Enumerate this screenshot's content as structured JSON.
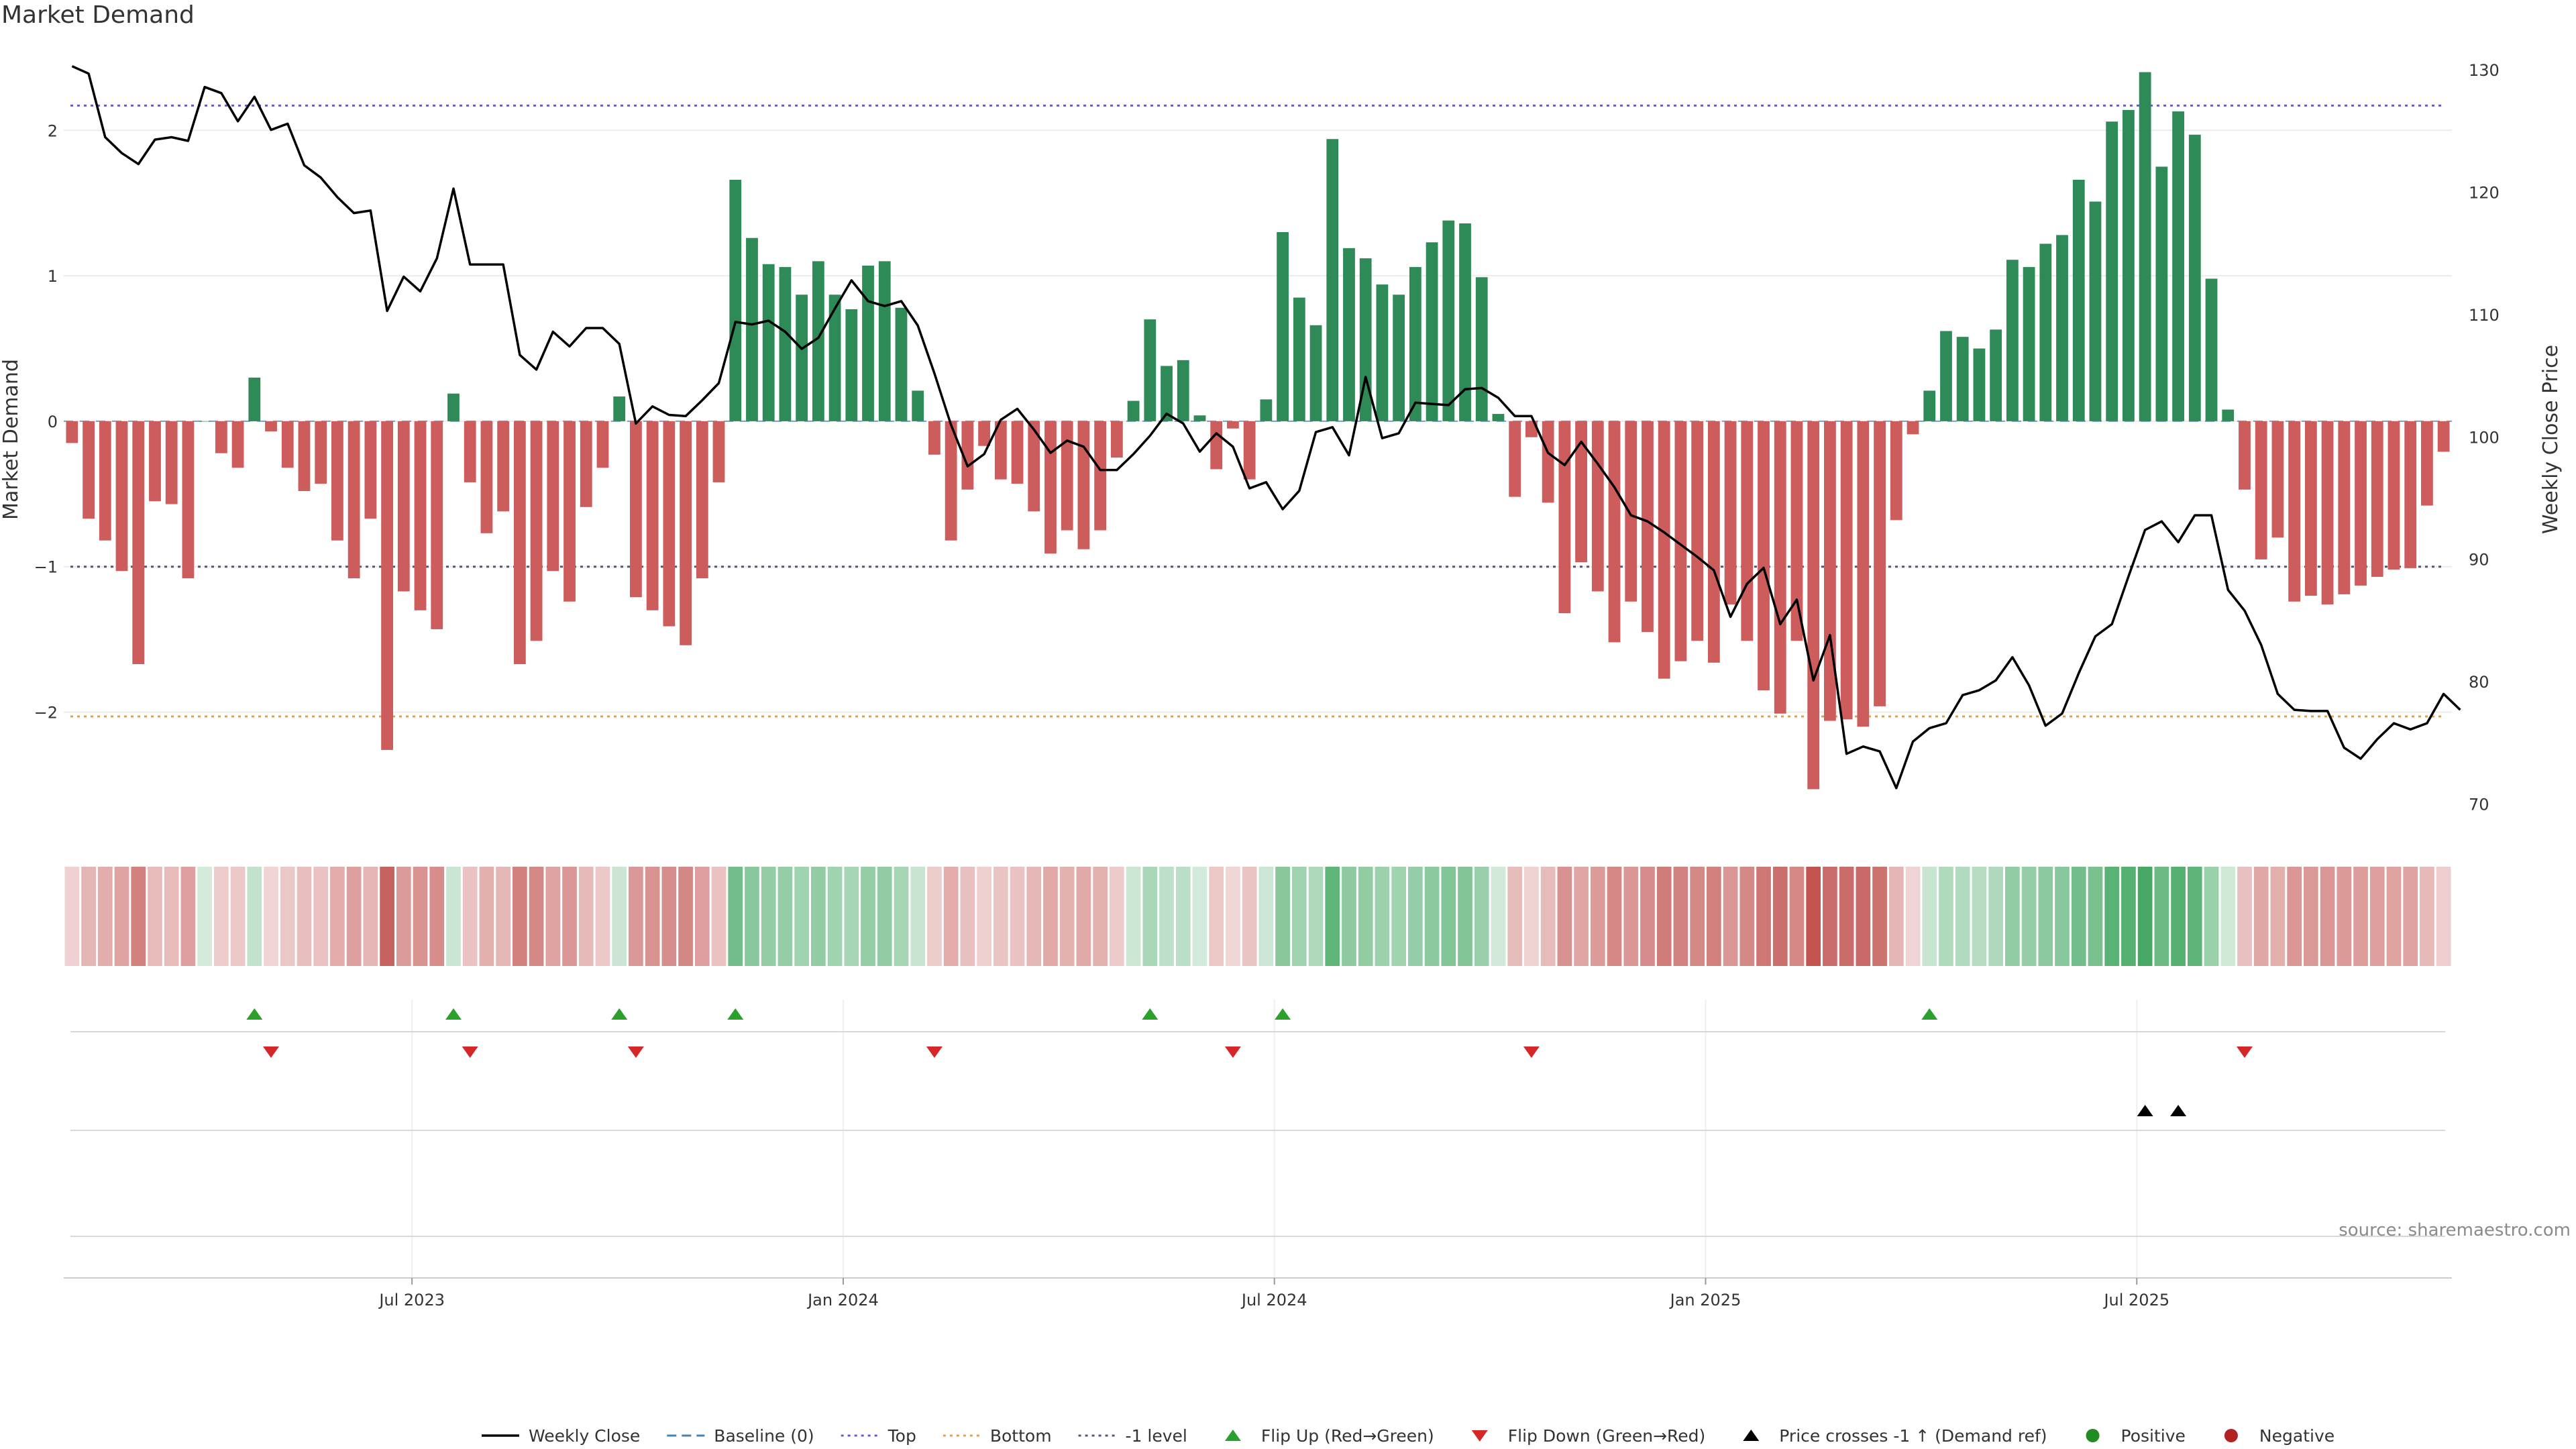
{
  "title": "Market Demand",
  "source_text": "source: sharemaestro.com",
  "colors": {
    "positive": "#2e8b57",
    "negative": "#cd5c5c",
    "price_line": "#000000",
    "top_line": "#6a5acd",
    "bottom_line": "#e0a050",
    "minus1_line": "#555577",
    "baseline": "#4682b4",
    "flip_up": "#2ca02c",
    "flip_down": "#d62728",
    "cross": "#000000"
  },
  "chart_data": {
    "type": "bar+line",
    "title": "Market Demand",
    "y_left_label": "Market Demand",
    "y_right_label": "Weekly Close Price",
    "y_left_ticks": [
      2,
      1,
      0,
      -1,
      -2
    ],
    "y_left_tick_labels": [
      "2",
      "1",
      "0",
      "−1",
      "−2"
    ],
    "y_left_range": [
      -2.8,
      2.55
    ],
    "y_right_ticks": [
      130,
      120,
      110,
      100,
      90,
      80,
      70
    ],
    "y_right_range": [
      68,
      131.6
    ],
    "x_tick_labels": [
      "Jul 2023",
      "Jan 2024",
      "Jul 2024",
      "Jan 2025",
      "Jul 2025"
    ],
    "x_tick_week_index": [
      21,
      47,
      73,
      99,
      125
    ],
    "reference_levels": {
      "top": 2.17,
      "bottom": -2.03,
      "minus_one": -1.0,
      "baseline": 0
    },
    "demand": [
      -0.15,
      -0.67,
      -0.82,
      -1.03,
      -1.67,
      -0.55,
      -0.57,
      -1.08,
      0,
      -0.22,
      -0.32,
      0.3,
      -0.07,
      -0.32,
      -0.48,
      -0.43,
      -0.82,
      -1.08,
      -0.67,
      -2.26,
      -1.17,
      -1.3,
      -1.43,
      0.19,
      -0.42,
      -0.77,
      -0.62,
      -1.67,
      -1.51,
      -1.03,
      -1.24,
      -0.59,
      -0.32,
      0.17,
      -1.21,
      -1.3,
      -1.41,
      -1.54,
      -1.08,
      -0.42,
      1.66,
      1.26,
      1.08,
      1.06,
      0.87,
      1.1,
      0.87,
      0.77,
      1.07,
      1.1,
      0.78,
      0.21,
      -0.23,
      -0.82,
      -0.47,
      -0.17,
      -0.4,
      -0.43,
      -0.62,
      -0.91,
      -0.75,
      -0.88,
      -0.75,
      -0.25,
      0.14,
      0.7,
      0.38,
      0.42,
      0.04,
      -0.33,
      -0.05,
      -0.4,
      0.15,
      1.3,
      0.85,
      0.66,
      1.94,
      1.19,
      1.12,
      0.94,
      0.87,
      1.06,
      1.23,
      1.38,
      1.36,
      0.99,
      0.05,
      -0.52,
      -0.11,
      -0.56,
      -1.32,
      -0.97,
      -1.17,
      -1.52,
      -1.24,
      -1.45,
      -1.77,
      -1.65,
      -1.51,
      -1.66,
      -1.26,
      -1.51,
      -1.85,
      -2.01,
      -1.51,
      -2.53,
      -2.06,
      -2.05,
      -2.1,
      -1.96,
      -0.68,
      -0.09,
      0.21,
      0.62,
      0.58,
      0.5,
      0.63,
      1.11,
      1.06,
      1.22,
      1.28,
      1.66,
      1.51,
      2.06,
      2.14,
      2.4,
      1.75,
      2.13,
      1.97,
      0.98,
      0.08,
      -0.47,
      -0.95,
      -0.8,
      -1.24,
      -1.2,
      -1.26,
      -1.19,
      -1.13,
      -1.07,
      -1.02,
      -1.01,
      -0.58,
      -0.21
    ],
    "weekly_close": [
      130.3,
      129.7,
      124.5,
      123.2,
      122.3,
      124.3,
      124.5,
      124.2,
      128.6,
      128.1,
      125.8,
      127.8,
      125.1,
      125.6,
      122.2,
      121.2,
      119.6,
      118.3,
      118.5,
      110.3,
      113.1,
      111.9,
      114.6,
      120.3,
      114.1,
      114.1,
      114.1,
      106.7,
      105.5,
      108.6,
      107.4,
      108.9,
      108.9,
      107.6,
      101.1,
      102.5,
      101.8,
      101.7,
      103.0,
      104.4,
      109.4,
      109.2,
      109.5,
      108.6,
      107.2,
      108.1,
      110.5,
      112.8,
      111.1,
      110.7,
      111.1,
      109.1,
      105.2,
      101.0,
      97.6,
      98.6,
      101.4,
      102.3,
      100.6,
      98.7,
      99.7,
      99.2,
      97.3,
      97.3,
      98.6,
      100.1,
      101.9,
      101.1,
      98.8,
      100.3,
      99.2,
      95.8,
      96.3,
      94.1,
      95.6,
      100.4,
      100.8,
      98.5,
      104.9,
      99.9,
      100.3,
      102.8,
      102.7,
      102.6,
      103.9,
      104.0,
      103.2,
      101.7,
      101.7,
      98.7,
      97.7,
      99.6,
      97.8,
      95.9,
      93.6,
      93.1,
      92.2,
      91.2,
      90.2,
      89.1,
      85.3,
      88.0,
      89.3,
      84.7,
      86.7,
      80.1,
      83.8,
      74.1,
      74.7,
      74.3,
      71.3,
      75.1,
      76.2,
      76.6,
      78.9,
      79.3,
      80.1,
      82.0,
      79.7,
      76.4,
      77.4,
      80.7,
      83.7,
      84.7,
      88.6,
      92.4,
      93.1,
      91.4,
      93.6,
      93.6,
      87.5,
      85.8,
      83.0,
      79.0,
      77.7,
      77.6,
      77.6,
      74.6,
      73.7,
      75.3,
      76.6,
      76.1,
      76.6,
      79.0,
      77.7
    ],
    "flip_up_weeks": [
      11,
      23,
      33,
      40,
      65,
      73,
      112
    ],
    "flip_down_weeks": [
      12,
      24,
      34,
      52,
      70,
      88,
      131
    ],
    "price_cross_weeks": [
      125,
      127
    ],
    "legend": [
      {
        "label": "Weekly Close",
        "kind": "line"
      },
      {
        "label": "Baseline (0)",
        "kind": "dash"
      },
      {
        "label": "Top",
        "kind": "dot-top"
      },
      {
        "label": "Bottom",
        "kind": "dot-bottom"
      },
      {
        "label": "-1 level",
        "kind": "dot-minus1"
      },
      {
        "label": "Flip Up (Red→Green)",
        "kind": "tri-up-green"
      },
      {
        "label": "Flip Down (Green→Red)",
        "kind": "tri-down-red"
      },
      {
        "label": "Price crosses -1 ↑ (Demand ref)",
        "kind": "tri-up-black"
      },
      {
        "label": "Positive",
        "kind": "dot-green"
      },
      {
        "label": "Negative",
        "kind": "dot-red"
      }
    ]
  }
}
